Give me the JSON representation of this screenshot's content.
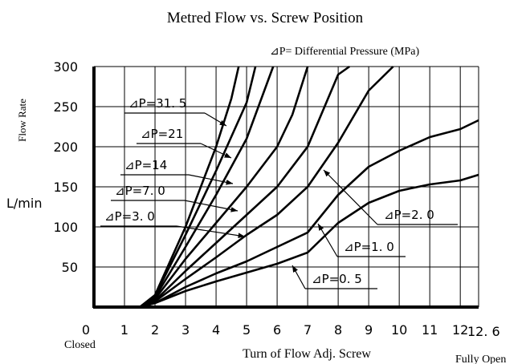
{
  "chart_data": {
    "type": "line",
    "title": "Metred Flow vs. Screw Position",
    "legend_title": "⊿P= Differential Pressure (MPa)",
    "y_label": "Flow Rate",
    "y_unit": "L/min",
    "x_label": "Turn of Flow Adj. Screw",
    "x_start_label": "Closed",
    "x_end_label": "Fully Open",
    "xlim": [
      0,
      12.6
    ],
    "ylim": [
      0,
      300
    ],
    "xticks": [
      0,
      1,
      2,
      3,
      4,
      5,
      6,
      7,
      8,
      9,
      10,
      11,
      12,
      {
        "value": 12.6,
        "label": "12. 6"
      }
    ],
    "yticks": [
      50,
      100,
      150,
      200,
      250,
      300
    ],
    "grid": true,
    "color": "#000000",
    "series": [
      {
        "name": "⊿P=31. 5",
        "x": [
          1.5,
          2,
          3,
          4,
          4.5,
          4.74
        ],
        "values": [
          0,
          15,
          100,
          200,
          260,
          300
        ]
      },
      {
        "name": "⊿P=21",
        "x": [
          1.5,
          2,
          3,
          4,
          5,
          5.29
        ],
        "values": [
          0,
          14,
          90,
          170,
          255,
          300
        ]
      },
      {
        "name": "⊿P=14",
        "x": [
          1.5,
          2,
          3,
          4,
          5,
          5.87
        ],
        "values": [
          0,
          12,
          75,
          140,
          210,
          300
        ]
      },
      {
        "name": "⊿P=7. 0",
        "x": [
          1.5,
          2,
          3,
          4,
          5,
          6,
          6.5,
          7
        ],
        "values": [
          0,
          10,
          60,
          105,
          150,
          200,
          240,
          300
        ]
      },
      {
        "name": "⊿P=3. 0",
        "x": [
          1.5,
          2,
          3,
          4,
          5,
          6,
          7,
          8,
          8.37
        ],
        "values": [
          0,
          8,
          45,
          80,
          115,
          150,
          200,
          290,
          300
        ]
      },
      {
        "name": "⊿P=2. 0",
        "x": [
          1.5,
          2,
          3,
          4,
          5,
          6,
          7,
          8,
          9,
          9.8
        ],
        "values": [
          0,
          7,
          35,
          62,
          90,
          115,
          150,
          205,
          270,
          300
        ]
      },
      {
        "name": "⊿P=1. 0",
        "x": [
          1.5,
          2,
          3,
          4,
          5,
          6,
          7,
          8,
          9,
          10,
          11,
          12,
          12.6
        ],
        "values": [
          0,
          5,
          25,
          42,
          57,
          75,
          93,
          140,
          175,
          195,
          212,
          222,
          233
        ]
      },
      {
        "name": "⊿P=0. 5",
        "x": [
          1.5,
          2,
          3,
          4,
          5,
          6,
          7,
          8,
          9,
          10,
          11,
          12,
          12.6
        ],
        "values": [
          0,
          5,
          20,
          32,
          43,
          54,
          68,
          105,
          130,
          145,
          153,
          158,
          165
        ]
      }
    ]
  }
}
